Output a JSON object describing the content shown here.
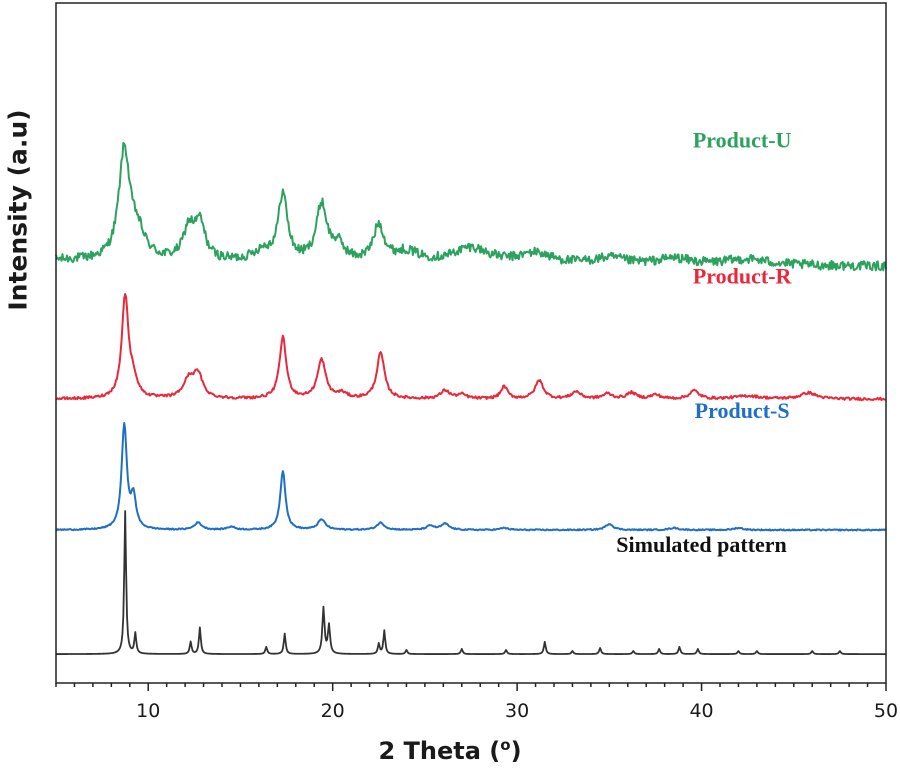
{
  "chart_data": {
    "type": "line",
    "xlabel": "2 Theta (o)",
    "xlabel_main": "2 Theta (",
    "xlabel_sup": "o",
    "xlabel_close": ")",
    "ylabel": "Intensity (a.u)",
    "xlim": [
      5,
      50
    ],
    "x_ticks": [
      10,
      20,
      30,
      40,
      50
    ],
    "x_tick_labels": [
      "10",
      "20",
      "30",
      "40",
      "50"
    ],
    "y_ticks_shown": false,
    "grid": false,
    "legend": "none",
    "series": [
      {
        "name": "Product-U",
        "color": "#2ca25f",
        "baseline": 3,
        "noise": 0.9,
        "background": [
          [
            5,
            0.6
          ],
          [
            15,
            0.4
          ],
          [
            30,
            0.2
          ],
          [
            50,
            0.0
          ]
        ],
        "peaks": [
          {
            "x": 8.7,
            "h": 10.5,
            "w": 0.35
          },
          {
            "x": 9.4,
            "h": 2.5,
            "w": 0.5
          },
          {
            "x": 12.2,
            "h": 3.0,
            "w": 0.35
          },
          {
            "x": 12.8,
            "h": 3.5,
            "w": 0.35
          },
          {
            "x": 16.2,
            "h": 1.0,
            "w": 0.6
          },
          {
            "x": 17.3,
            "h": 6.5,
            "w": 0.3
          },
          {
            "x": 19.4,
            "h": 5.5,
            "w": 0.35
          },
          {
            "x": 20.3,
            "h": 1.5,
            "w": 0.4
          },
          {
            "x": 22.5,
            "h": 3.5,
            "w": 0.35
          },
          {
            "x": 24.0,
            "h": 1.0,
            "w": 0.8
          },
          {
            "x": 27.5,
            "h": 1.5,
            "w": 1.2
          },
          {
            "x": 31.0,
            "h": 1.0,
            "w": 1.0
          },
          {
            "x": 35.0,
            "h": 0.6,
            "w": 1.0
          },
          {
            "x": 38.5,
            "h": 0.6,
            "w": 1.0
          },
          {
            "x": 42.5,
            "h": 0.6,
            "w": 1.5
          }
        ]
      },
      {
        "name": "Product-R",
        "color": "#e8293b",
        "baseline": 8.8,
        "noise": 0.25,
        "background": [
          [
            5,
            0.0
          ],
          [
            50,
            0.0
          ]
        ],
        "peaks": [
          {
            "x": 8.75,
            "h": 10.0,
            "w": 0.22
          },
          {
            "x": 9.2,
            "h": 1.5,
            "w": 0.25
          },
          {
            "x": 12.2,
            "h": 1.8,
            "w": 0.35
          },
          {
            "x": 12.7,
            "h": 2.2,
            "w": 0.3
          },
          {
            "x": 17.3,
            "h": 6.0,
            "w": 0.22
          },
          {
            "x": 19.4,
            "h": 3.8,
            "w": 0.27
          },
          {
            "x": 20.5,
            "h": 0.5,
            "w": 0.3
          },
          {
            "x": 22.6,
            "h": 4.5,
            "w": 0.25
          },
          {
            "x": 26.1,
            "h": 0.8,
            "w": 0.3
          },
          {
            "x": 27.0,
            "h": 0.4,
            "w": 0.3
          },
          {
            "x": 29.3,
            "h": 1.2,
            "w": 0.22
          },
          {
            "x": 31.2,
            "h": 1.8,
            "w": 0.27
          },
          {
            "x": 33.2,
            "h": 0.7,
            "w": 0.3
          },
          {
            "x": 34.9,
            "h": 0.5,
            "w": 0.3
          },
          {
            "x": 36.2,
            "h": 0.6,
            "w": 0.3
          },
          {
            "x": 37.5,
            "h": 0.4,
            "w": 0.3
          },
          {
            "x": 39.6,
            "h": 0.8,
            "w": 0.3
          },
          {
            "x": 42.5,
            "h": 0.3,
            "w": 0.8
          },
          {
            "x": 45.8,
            "h": 0.6,
            "w": 0.5
          }
        ]
      },
      {
        "name": "Product-S",
        "color": "#1f6fc5",
        "baseline": 14.6,
        "noise": 0.12,
        "background": [
          [
            5,
            0.0
          ],
          [
            50,
            0.0
          ]
        ],
        "peaks": [
          {
            "x": 8.7,
            "h": 10.2,
            "w": 0.17
          },
          {
            "x": 9.2,
            "h": 3.0,
            "w": 0.17
          },
          {
            "x": 12.7,
            "h": 0.7,
            "w": 0.25
          },
          {
            "x": 14.5,
            "h": 0.3,
            "w": 0.25
          },
          {
            "x": 17.3,
            "h": 5.8,
            "w": 0.17
          },
          {
            "x": 19.4,
            "h": 1.0,
            "w": 0.25
          },
          {
            "x": 22.6,
            "h": 0.7,
            "w": 0.25
          },
          {
            "x": 25.3,
            "h": 0.4,
            "w": 0.25
          },
          {
            "x": 26.1,
            "h": 0.6,
            "w": 0.25
          },
          {
            "x": 29.3,
            "h": 0.2,
            "w": 0.25
          },
          {
            "x": 35.0,
            "h": 0.6,
            "w": 0.25
          },
          {
            "x": 38.5,
            "h": 0.2,
            "w": 0.3
          },
          {
            "x": 42.0,
            "h": 0.2,
            "w": 0.3
          }
        ]
      },
      {
        "name": "Simulated pattern",
        "color": "#333333",
        "baseline": 20.4,
        "noise": 0.0,
        "background": [
          [
            5,
            0.0
          ],
          [
            50,
            0.0
          ]
        ],
        "peaks": [
          {
            "x": 8.75,
            "h": 14.0,
            "w": 0.06
          },
          {
            "x": 9.3,
            "h": 2.0,
            "w": 0.06
          },
          {
            "x": 12.3,
            "h": 1.2,
            "w": 0.06
          },
          {
            "x": 12.8,
            "h": 2.6,
            "w": 0.06
          },
          {
            "x": 16.4,
            "h": 0.7,
            "w": 0.06
          },
          {
            "x": 17.4,
            "h": 2.0,
            "w": 0.06
          },
          {
            "x": 19.5,
            "h": 4.5,
            "w": 0.07
          },
          {
            "x": 19.8,
            "h": 2.8,
            "w": 0.07
          },
          {
            "x": 22.5,
            "h": 1.0,
            "w": 0.06
          },
          {
            "x": 22.8,
            "h": 2.3,
            "w": 0.06
          },
          {
            "x": 24.0,
            "h": 0.4,
            "w": 0.06
          },
          {
            "x": 27.0,
            "h": 0.5,
            "w": 0.06
          },
          {
            "x": 29.4,
            "h": 0.4,
            "w": 0.06
          },
          {
            "x": 31.5,
            "h": 1.2,
            "w": 0.06
          },
          {
            "x": 33.0,
            "h": 0.3,
            "w": 0.06
          },
          {
            "x": 34.5,
            "h": 0.6,
            "w": 0.06
          },
          {
            "x": 36.3,
            "h": 0.3,
            "w": 0.06
          },
          {
            "x": 37.7,
            "h": 0.5,
            "w": 0.06
          },
          {
            "x": 38.8,
            "h": 0.7,
            "w": 0.06
          },
          {
            "x": 39.8,
            "h": 0.5,
            "w": 0.06
          },
          {
            "x": 42.0,
            "h": 0.3,
            "w": 0.06
          },
          {
            "x": 43.0,
            "h": 0.3,
            "w": 0.06
          },
          {
            "x": 46.0,
            "h": 0.3,
            "w": 0.06
          },
          {
            "x": 47.5,
            "h": 0.3,
            "w": 0.06
          }
        ]
      }
    ]
  }
}
